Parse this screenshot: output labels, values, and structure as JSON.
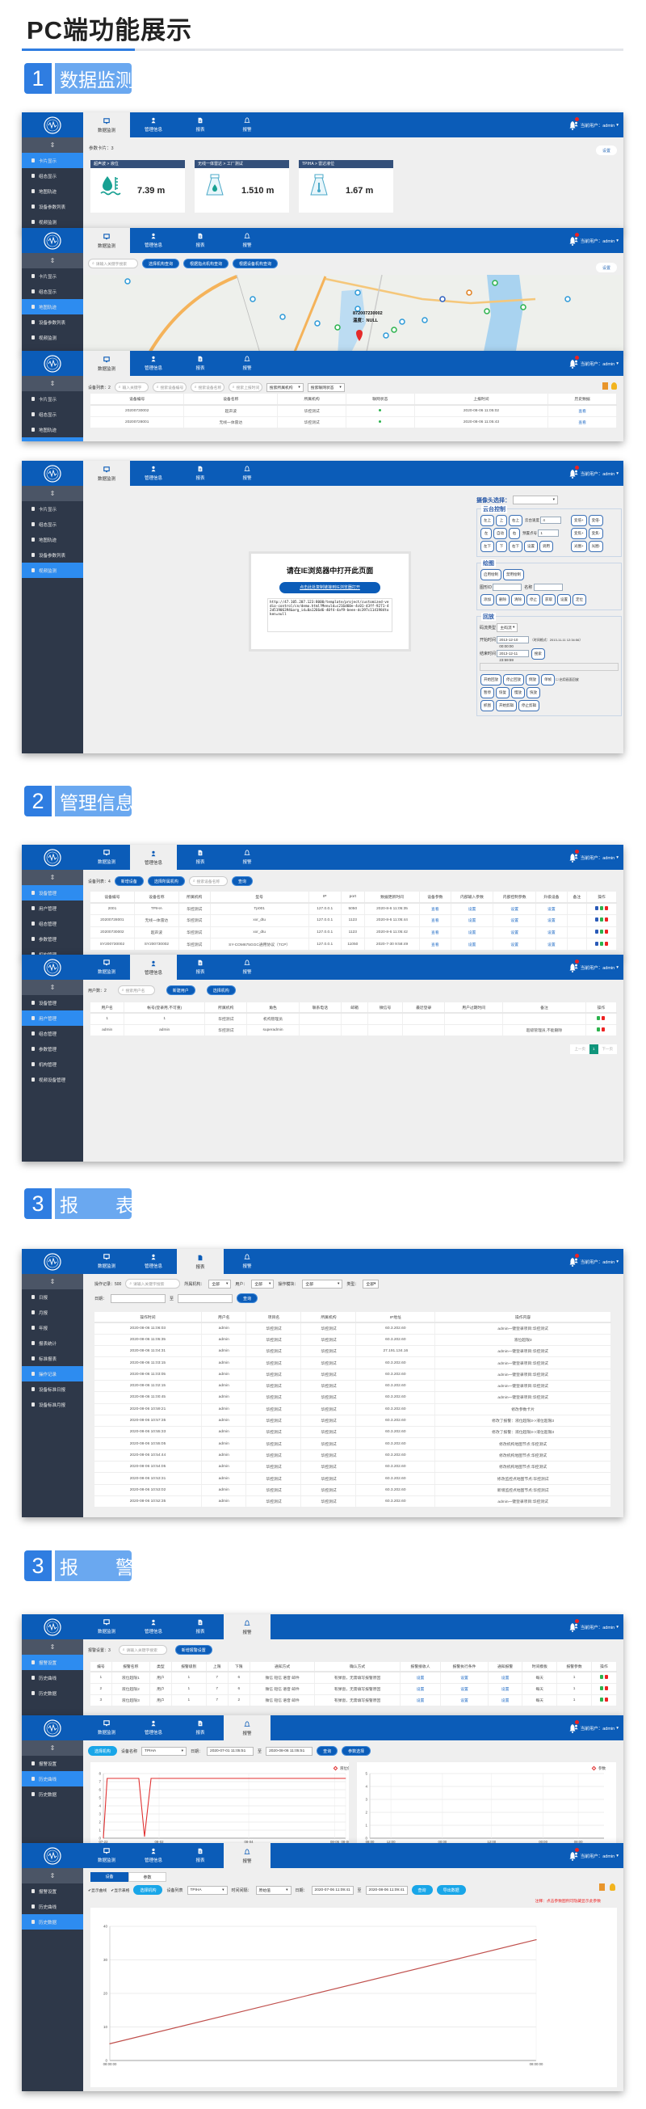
{
  "page": {
    "title": "PC端功能展示"
  },
  "sections": [
    {
      "num": "1",
      "label": "数据监测"
    },
    {
      "num": "2",
      "label": "管理信息"
    },
    {
      "num": "3",
      "label": "报　　表"
    },
    {
      "num": "3",
      "label": "报　　警"
    }
  ],
  "app": {
    "nav": [
      "数据监测",
      "管理信息",
      "报表",
      "报警"
    ],
    "user": "当前用户：admin",
    "colors": {
      "header": "#0b5cb8",
      "sidebar": "#2e3849",
      "active": "#2d8cf0",
      "badge_number": "#2f7de1",
      "badge_label": "#6aa8f0"
    }
  },
  "sidebars": {
    "monitor": [
      "卡片显示",
      "组态显示",
      "地图轨迹",
      "设备参数列表",
      "视频监测"
    ],
    "manage": [
      "设备管理",
      "用户管理",
      "组态管理",
      "参数管理",
      "机构管理",
      "视频设备管理"
    ],
    "report": [
      "日报",
      "月报",
      "年报",
      "报表统计",
      "标准报表",
      "操作记录",
      "设备标准日报",
      "设备标准月报"
    ],
    "alarm": [
      "报警设置",
      "历史曲线",
      "历史数据"
    ]
  },
  "screens": {
    "card_view": {
      "count_label": "参数卡片：3",
      "settings": "设置",
      "cards": [
        {
          "title": "超声波 > 液位",
          "value": "7.39 m",
          "icon": "water-level-icon"
        },
        {
          "title": "无线一体雷达 > 工厂测试",
          "value": "1.510 m",
          "icon": "radar-flask-icon"
        },
        {
          "title": "TPIHA > 雷达液位",
          "value": "1.67 m",
          "icon": "thermo-flask-icon"
        }
      ]
    },
    "map_view": {
      "search_placeholder": "请输入关键字搜索",
      "buttons": [
        "选择机构查询",
        "根据指点机构查询",
        "根据设备机构查询"
      ],
      "settings": "设置",
      "marker_id": "872007230002",
      "marker_info": "温度：NULL"
    },
    "device_list": {
      "count_label": "设备列表：2",
      "filters": [
        "输入关键字",
        "搜索设备编号",
        "搜索设备名称",
        "搜索上报时间"
      ],
      "selects": [
        "搜索所属机构",
        "搜索联网状态"
      ],
      "columns": [
        "设备编号",
        "设备名称",
        "所属机构",
        "联网状态",
        "上报时间",
        "历史数据"
      ],
      "rows": [
        [
          "20200730002",
          "超声波",
          "华控测试",
          "●",
          "2020-08-06 11:05:02",
          "查看"
        ],
        [
          "20200728001",
          "无线一体雷达",
          "华控测试",
          "●",
          "2020-08-06 11:05:43",
          "查看"
        ]
      ]
    },
    "video": {
      "modal_title": "请在IE浏览器中打开此页面",
      "modal_button": "点击此处复制链接到IE浏览器打开",
      "modal_url": "http://47.105.207.123:8000/template/project/customized-vedio-control/cn/demo.html?Menuld=c216d60e-4c01-43ff-9271-42d51906394&org_id=0a1266d6-40f4-4af9-beee-dc397c1141984token=null",
      "camera_label": "摄像头选择：",
      "ptz_title": "云台控制",
      "ptz_buttons": [
        [
          "左上",
          "上",
          "右上"
        ],
        [
          "左",
          "自动",
          "右"
        ],
        [
          "左下",
          "下",
          "右下",
          "设置",
          "调用"
        ]
      ],
      "ptz_speed_label": "云台速度",
      "ptz_speed": "4",
      "preset_label": "预置点号",
      "preset": "1",
      "zoom_buttons": [
        [
          "变倍+",
          "变倍-"
        ],
        [
          "变焦+",
          "变焦-"
        ],
        [
          "光圈+",
          "光圈-"
        ]
      ],
      "draw_title": "绘图",
      "draw_buttons": [
        "启用绘制",
        "禁用绘制"
      ],
      "shape_id_label": "图形ID",
      "name_label": "名称",
      "draw_actions": [
        "添加",
        "删除",
        "清除",
        "停止",
        "获取",
        "设置",
        "定位"
      ],
      "playback_title": "回放",
      "stream_label": "码流类型",
      "stream": "主码流",
      "start_label": "开始时间",
      "start": "2013-12-10 00:00:00",
      "format_hint": "（时间格式：2013-11-11 12:34:56）",
      "end_label": "结束时间",
      "end": "2013-12-11 23:59:59",
      "search": "搜索",
      "playback_buttons": [
        [
          "开始回放",
          "停止回放",
          "倒放",
          "单帧"
        ],
        [
          "暂停",
          "恢复",
          "慢放",
          "快放"
        ],
        [
          "抓图",
          "开始剪辑",
          "停止剪辑"
        ]
      ],
      "reverse_check": "启用画面回放"
    },
    "device_manage": {
      "count_label": "设备列表：4",
      "add": "新增设备",
      "org": "选择所属机构",
      "search_placeholder": "搜索设备名称",
      "query": "查询",
      "columns": [
        "设备编号",
        "设备名称",
        "所属机构",
        "型号",
        "IP",
        "port",
        "数据更新时间",
        "设备参数",
        "内部输入参数",
        "内部控制参数",
        "升级设备",
        "备注",
        "操作"
      ],
      "rows": [
        [
          "2001",
          "TPIHA",
          "华控测试",
          "Tp001",
          "127.0.0.1",
          "5050",
          "2020-8-6 11:05:35",
          "查看",
          "设置",
          "设置",
          "设置",
          ""
        ],
        [
          "20200728001",
          "无线一体雷达",
          "华控测试",
          "xxr_dtu",
          "127.0.0.1",
          "1123",
          "2020-8-6 11:05:44",
          "查看",
          "设置",
          "设置",
          "设置",
          ""
        ],
        [
          "20200730002",
          "超声波",
          "华控测试",
          "xxr_dtu",
          "127.0.0.1",
          "1123",
          "2020-8-6 11:05:42",
          "查看",
          "设置",
          "设置",
          "设置",
          ""
        ],
        [
          "SY200730002",
          "SY200730002",
          "华控测试",
          "SY-COM675GGC通用协议（TCP）",
          "127.0.0.1",
          "11050",
          "2020-7-30 9:58:49",
          "查看",
          "设置",
          "设置",
          "设置",
          ""
        ]
      ]
    },
    "user_manage": {
      "count_label": "用户数：2",
      "search_placeholder": "搜索用户名",
      "add": "新建用户",
      "org": "选择机构",
      "columns": [
        "用户名",
        "帐号(登录用,不可重)",
        "所属机构",
        "角色",
        "联系电话",
        "邮箱",
        "微信号",
        "最近登录",
        "用户过期时间",
        "备注",
        "操作"
      ],
      "rows": [
        [
          "1",
          "1",
          "华控测试",
          "机构管理员",
          "",
          "",
          "",
          "",
          "",
          ""
        ],
        [
          "admin",
          "admin",
          "华控测试",
          "superadmin",
          "",
          "",
          "",
          "",
          "",
          "超级管理员,不能删除"
        ]
      ],
      "pagination": {
        "prev": "上一页",
        "current": "1",
        "next": "下一页"
      }
    },
    "operation_log": {
      "count_label": "操作记录：500",
      "search_placeholder": "请输入关键字搜索",
      "org_label": "所属机构：",
      "org": "全部",
      "user_label": "用户：",
      "user": "全部",
      "module_label": "操作模块：",
      "module": "全部",
      "type_label": "类型：",
      "type": "全部",
      "date_label": "日期：",
      "to": "至",
      "query": "查询",
      "columns": [
        "操作时间",
        "用户名",
        "项目名",
        "所属机构",
        "IP地址",
        "操作内容"
      ],
      "rows": [
        [
          "2020-08-06 11:06:03",
          "admin",
          "华控测试",
          "华控测试",
          "60.3.202.60",
          "admin一键登录项目:华控测试"
        ],
        [
          "2020-08-06 11:05:35",
          "admin",
          "华控测试",
          "华控测试",
          "60.3.202.60",
          "液位超限3"
        ],
        [
          "2020-08-06 11:04:31",
          "admin",
          "华控测试",
          "华控测试",
          "27.191.134.16",
          "admin一键登录项目:华控测试"
        ],
        [
          "2020-08-06 11:03:15",
          "admin",
          "华控测试",
          "华控测试",
          "60.3.202.60",
          "admin一键登录项目:华控测试"
        ],
        [
          "2020-08-06 11:03:05",
          "admin",
          "华控测试",
          "华控测试",
          "60.3.202.60",
          "admin一键登录项目:华控测试"
        ],
        [
          "2020-08-06 11:02:15",
          "admin",
          "华控测试",
          "华控测试",
          "60.3.202.60",
          "admin一键登录项目:华控测试"
        ],
        [
          "2020-08-06 11:00:45",
          "admin",
          "华控测试",
          "华控测试",
          "60.3.202.60",
          "admin一键登录项目:华控测试"
        ],
        [
          "2020-08-06 10:59:21",
          "admin",
          "华控测试",
          "华控测试",
          "60.3.202.60",
          "修改参数卡片"
        ],
        [
          "2020-08-06 10:57:35",
          "admin",
          "华控测试",
          "华控测试",
          "60.3.202.60",
          "修改了报警：液位超限3->液位超限3"
        ],
        [
          "2020-08-06 10:55:33",
          "admin",
          "华控测试",
          "华控测试",
          "60.3.202.60",
          "修改了报警：液位超限3->液位超限3"
        ],
        [
          "2020-08-06 10:55:05",
          "admin",
          "华控测试",
          "华控测试",
          "60.3.202.60",
          "修改机构地图节点:华控测试"
        ],
        [
          "2020-08-06 10:54:44",
          "admin",
          "华控测试",
          "华控测试",
          "60.3.202.60",
          "修改机构地图节点:华控测试"
        ],
        [
          "2020-08-06 10:54:05",
          "admin",
          "华控测试",
          "华控测试",
          "60.3.202.60",
          "修改机构地图节点:华控测试"
        ],
        [
          "2020-08-06 10:53:31",
          "admin",
          "华控测试",
          "华控测试",
          "60.3.202.60",
          "修改监控点地图节点:华控测试"
        ],
        [
          "2020-08-06 10:53:02",
          "admin",
          "华控测试",
          "华控测试",
          "60.3.202.60",
          "新增监控点地图节点:华控测试"
        ],
        [
          "2020-08-06 10:52:35",
          "admin",
          "华控测试",
          "华控测试",
          "60.3.202.60",
          "admin一键登录项目:华控测试"
        ]
      ]
    },
    "alarm_settings": {
      "count_label": "报警设置：3",
      "search_placeholder": "请输入关键字搜索",
      "add": "新增报警设置",
      "columns": [
        "编号",
        "报警名称",
        "类型",
        "报警级别",
        "上限",
        "下限",
        "通知方式",
        "确认方式",
        "报警接收人",
        "报警执行条件",
        "通知报警",
        "时间模板",
        "报警参数",
        "操作"
      ],
      "rows": [
        [
          "1",
          "液位超限1",
          "用户",
          "1",
          "7",
          "6",
          "微信 短信 语音 邮件",
          "有弹窗，无需填写报警原因",
          "设置",
          "设置",
          "设置",
          "每天",
          "1"
        ],
        [
          "2",
          "液位超限2",
          "用户",
          "1",
          "7",
          "6",
          "微信 短信 语音 邮件",
          "有弹窗，无需填写报警原因",
          "设置",
          "设置",
          "设置",
          "每天",
          "1"
        ],
        [
          "3",
          "液位超限3",
          "用户",
          "1",
          "7",
          "2",
          "微信 短信 语音 邮件",
          "有弹窗，无需填写报警原因",
          "设置",
          "设置",
          "设置",
          "每天",
          "1"
        ]
      ]
    },
    "history_curve": {
      "org": "选择机构",
      "device_label": "设备名称",
      "device": "TPIHA",
      "date_label": "日期：",
      "start": "2020-07-01 11:05:51",
      "to": "至",
      "end": "2020-08-06 11:05:51",
      "query": "查询",
      "params": "参数选择"
    },
    "history_data": {
      "tabs": [
        "设备",
        "参数"
      ],
      "active_tab": 0,
      "show_curve": "显示曲线",
      "show_table": "显示表格",
      "org": "选择机构",
      "device_label": "设备列表",
      "device": "TPIHA",
      "interval_label": "时间间隔：",
      "interval": "原始值",
      "date_label": "日期：",
      "start": "2020-07-06 11:09:41",
      "to": "至",
      "end": "2020-08-06 11:09:41",
      "query": "查询",
      "export": "导出数据",
      "note": "注释：点击参数图例可隐藏显示此参数"
    }
  },
  "chart_data": [
    {
      "type": "line",
      "legend": "液位值",
      "legend_position": "top-right",
      "ylim": [
        0,
        8
      ],
      "yticks": [
        "0",
        "1",
        "2",
        "3",
        "4",
        "5",
        "6",
        "7",
        "8"
      ],
      "xticks": [
        "07-22\n2020",
        "08-02\n2020",
        "08-04\n2020",
        "08-06\n2020",
        "08-06\n2020"
      ],
      "grid": true,
      "series": [
        {
          "name": "液位值",
          "color": "#e03030",
          "points": [
            [
              "2020-07-22 00:00",
              0
            ],
            [
              "2020-07-22 18:00",
              7.4
            ],
            [
              "2020-07-29 00:00",
              7.4
            ],
            [
              "2020-07-30 03:00",
              0.2
            ],
            [
              "2020-07-31 10:00",
              7.4
            ],
            [
              "2020-08-06 12:00",
              7.4
            ]
          ]
        }
      ]
    },
    {
      "type": "line",
      "legend": "参数",
      "legend_position": "top-right",
      "ylim": [
        0,
        5
      ],
      "yticks": [
        "0",
        "1",
        "2",
        "3",
        "4",
        "5"
      ],
      "xticks": [
        "08:00\n12-09",
        "12:00\n12-09",
        "00:00\n12-10",
        "12:00\n12-10",
        "00:00\n12-11",
        "08:00\n12-11"
      ],
      "grid": true,
      "series": []
    },
    {
      "type": "line",
      "ylim": [
        0,
        40
      ],
      "yticks": [
        "0",
        "10",
        "20",
        "30",
        "40"
      ],
      "categories": [
        "08:00:00",
        "08:00:00"
      ],
      "grid": true,
      "series": [
        {
          "color": "#c0504d",
          "values": [
            5,
            36
          ]
        }
      ]
    }
  ]
}
